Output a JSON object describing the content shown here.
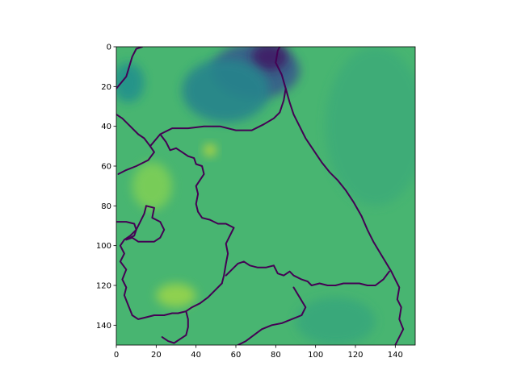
{
  "chart_data": {
    "type": "heatmap",
    "title": "",
    "xlabel": "",
    "ylabel": "",
    "xlim": [
      0,
      150
    ],
    "ylim": [
      150,
      0
    ],
    "x_ticks": [
      0,
      20,
      40,
      60,
      80,
      100,
      120,
      140
    ],
    "x_tick_labels": [
      "0",
      "20",
      "40",
      "60",
      "80",
      "100",
      "120",
      "140"
    ],
    "y_ticks": [
      0,
      20,
      40,
      60,
      80,
      100,
      120,
      140
    ],
    "y_tick_labels": [
      "0",
      "20",
      "40",
      "60",
      "80",
      "100",
      "120",
      "140"
    ],
    "grid": false,
    "colormap": "viridis",
    "base_value": 0.66,
    "colors": {
      "viridis_stops": [
        "#440154",
        "#3b528b",
        "#21918c",
        "#5ec962",
        "#fde725"
      ]
    },
    "features": [
      {
        "name": "dark-top-region",
        "x": 70,
        "y": 12,
        "rx": 22,
        "ry": 14,
        "value": 0.28
      },
      {
        "name": "dark-top-core",
        "x": 77,
        "y": 5,
        "rx": 9,
        "ry": 7,
        "value": 0.08
      },
      {
        "name": "dark-top-spread",
        "x": 55,
        "y": 22,
        "rx": 22,
        "ry": 16,
        "value": 0.45
      },
      {
        "name": "left-edge-dark",
        "x": 6,
        "y": 18,
        "rx": 8,
        "ry": 10,
        "value": 0.5
      },
      {
        "name": "bright-spot",
        "x": 47,
        "y": 52,
        "rx": 3,
        "ry": 3,
        "value": 0.92
      },
      {
        "name": "bright-lower-left",
        "x": 30,
        "y": 125,
        "rx": 10,
        "ry": 6,
        "value": 0.84
      },
      {
        "name": "bright-mid-left",
        "x": 18,
        "y": 70,
        "rx": 10,
        "ry": 12,
        "value": 0.8
      },
      {
        "name": "lower-right",
        "x": 110,
        "y": 138,
        "rx": 20,
        "ry": 12,
        "value": 0.6
      },
      {
        "name": "sea-right",
        "x": 130,
        "y": 40,
        "rx": 25,
        "ry": 40,
        "value": 0.62
      }
    ],
    "border_lines": [
      [
        [
          0,
          21
        ],
        [
          5,
          15
        ],
        [
          8,
          5
        ],
        [
          10,
          1
        ],
        [
          13,
          0
        ]
      ],
      [
        [
          0,
          34
        ],
        [
          3,
          36
        ],
        [
          7,
          40
        ],
        [
          11,
          44
        ],
        [
          14,
          46
        ],
        [
          17,
          50
        ],
        [
          19,
          53
        ],
        [
          16,
          57
        ],
        [
          10,
          60
        ],
        [
          5,
          62
        ],
        [
          1,
          64
        ]
      ],
      [
        [
          17,
          50
        ],
        [
          22,
          44
        ],
        [
          28,
          41
        ],
        [
          36,
          41
        ],
        [
          44,
          40
        ],
        [
          52,
          40
        ],
        [
          60,
          42
        ],
        [
          68,
          42
        ],
        [
          74,
          39
        ],
        [
          79,
          36
        ],
        [
          82,
          33
        ],
        [
          84,
          27
        ],
        [
          85,
          21
        ],
        [
          83,
          14
        ],
        [
          80,
          8
        ],
        [
          81,
          2
        ],
        [
          82,
          0
        ]
      ],
      [
        [
          22,
          44
        ],
        [
          25,
          48
        ],
        [
          27,
          52
        ],
        [
          30,
          51
        ],
        [
          33,
          53
        ],
        [
          36,
          55
        ],
        [
          39,
          56
        ],
        [
          40,
          59
        ],
        [
          43,
          60
        ],
        [
          44,
          64
        ],
        [
          42,
          67
        ],
        [
          40,
          70
        ],
        [
          41,
          74
        ],
        [
          40,
          79
        ],
        [
          41,
          83
        ],
        [
          43,
          86
        ],
        [
          47,
          87
        ],
        [
          51,
          89
        ],
        [
          55,
          89
        ],
        [
          59,
          91
        ],
        [
          57,
          95
        ],
        [
          55,
          99
        ],
        [
          56,
          104
        ],
        [
          55,
          109
        ],
        [
          54,
          115
        ],
        [
          53,
          119
        ]
      ],
      [
        [
          85,
          21
        ],
        [
          87,
          28
        ],
        [
          89,
          34
        ],
        [
          92,
          40
        ],
        [
          95,
          46
        ],
        [
          99,
          52
        ],
        [
          103,
          58
        ],
        [
          107,
          63
        ],
        [
          111,
          67
        ],
        [
          115,
          72
        ],
        [
          119,
          78
        ],
        [
          123,
          85
        ],
        [
          126,
          92
        ],
        [
          129,
          98
        ],
        [
          132,
          103
        ],
        [
          135,
          108
        ],
        [
          138,
          113
        ],
        [
          140,
          117
        ],
        [
          142,
          121
        ],
        [
          141,
          127
        ],
        [
          143,
          131
        ],
        [
          142,
          137
        ],
        [
          144,
          142
        ],
        [
          142,
          146
        ],
        [
          140,
          150
        ]
      ],
      [
        [
          55,
          115
        ],
        [
          58,
          112
        ],
        [
          61,
          109
        ],
        [
          64,
          108
        ],
        [
          67,
          110
        ],
        [
          71,
          111
        ],
        [
          75,
          111
        ],
        [
          79,
          110
        ],
        [
          81,
          114
        ],
        [
          84,
          115
        ],
        [
          87,
          113
        ],
        [
          89,
          115
        ],
        [
          93,
          117
        ],
        [
          96,
          118
        ],
        [
          98,
          120
        ],
        [
          102,
          119
        ],
        [
          106,
          120
        ],
        [
          110,
          120
        ],
        [
          114,
          119
        ],
        [
          118,
          119
        ],
        [
          122,
          119
        ],
        [
          126,
          120
        ],
        [
          130,
          120
        ],
        [
          134,
          117
        ],
        [
          137,
          113
        ]
      ],
      [
        [
          53,
          119
        ],
        [
          50,
          122
        ],
        [
          46,
          126
        ],
        [
          42,
          129
        ],
        [
          38,
          131
        ],
        [
          35,
          133
        ],
        [
          31,
          134
        ],
        [
          28,
          134
        ],
        [
          24,
          135
        ],
        [
          19,
          135
        ],
        [
          15,
          136
        ],
        [
          11,
          137
        ],
        [
          8,
          135
        ]
      ],
      [
        [
          0,
          88
        ],
        [
          5,
          88
        ],
        [
          9,
          89
        ],
        [
          10,
          92
        ],
        [
          7,
          95
        ],
        [
          4,
          97
        ],
        [
          2,
          100
        ],
        [
          4,
          104
        ],
        [
          2,
          108
        ],
        [
          5,
          112
        ],
        [
          3,
          117
        ],
        [
          5,
          121
        ],
        [
          4,
          125
        ],
        [
          6,
          130
        ],
        [
          8,
          135
        ]
      ],
      [
        [
          5,
          97
        ],
        [
          9,
          95
        ],
        [
          10,
          92
        ],
        [
          12,
          88
        ],
        [
          14,
          84
        ],
        [
          15,
          80
        ],
        [
          19,
          81
        ],
        [
          18,
          86
        ],
        [
          22,
          88
        ],
        [
          24,
          92
        ],
        [
          22,
          96
        ],
        [
          19,
          98
        ],
        [
          15,
          98
        ],
        [
          11,
          98
        ],
        [
          8,
          96
        ],
        [
          5,
          97
        ]
      ],
      [
        [
          35,
          133
        ],
        [
          36,
          137
        ],
        [
          36,
          141
        ],
        [
          35,
          145
        ],
        [
          32,
          147
        ],
        [
          29,
          149
        ],
        [
          26,
          148
        ],
        [
          23,
          146
        ]
      ],
      [
        [
          89,
          121
        ],
        [
          92,
          126
        ],
        [
          95,
          131
        ],
        [
          93,
          135
        ],
        [
          88,
          137
        ],
        [
          83,
          139
        ],
        [
          78,
          140
        ],
        [
          73,
          142
        ],
        [
          69,
          145
        ],
        [
          65,
          148
        ],
        [
          61,
          150
        ]
      ]
    ]
  }
}
